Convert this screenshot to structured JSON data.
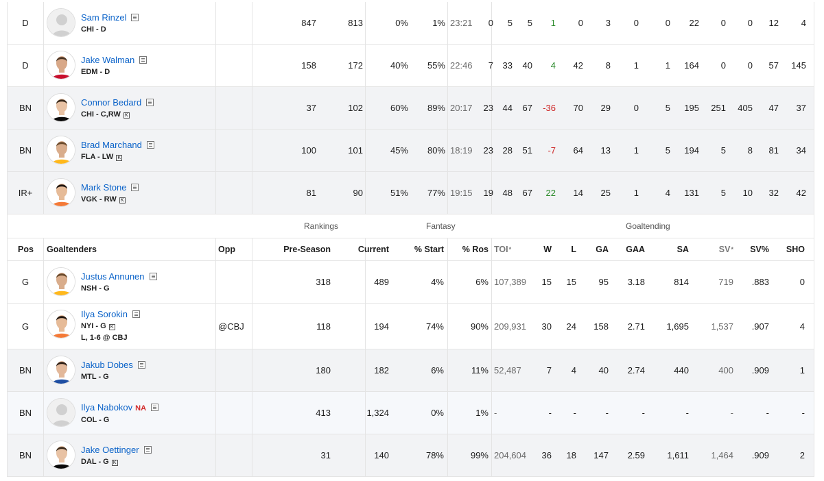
{
  "skaters": [
    {
      "pos": "D",
      "name": "Sam Rinzel",
      "meta": "CHI - D",
      "k": false,
      "avatar": "placeholder",
      "preseason": "847",
      "current": "813",
      "start": "0%",
      "ros": "1%",
      "toi": "23:21",
      "g": "0",
      "a": "5",
      "p": "5",
      "pm": "1",
      "pm_color": "green",
      "pim": "0",
      "ppp": "3",
      "shp": "0",
      "gwg": "0",
      "sog": "22",
      "fw": "0",
      "fl": "0",
      "hit": "12",
      "blk": "4",
      "bg": "white"
    },
    {
      "pos": "D",
      "name": "Jake Walman",
      "meta": "EDM - D",
      "k": false,
      "avatar": "photo",
      "preseason": "158",
      "current": "172",
      "start": "40%",
      "ros": "55%",
      "toi": "22:46",
      "g": "7",
      "a": "33",
      "p": "40",
      "pm": "4",
      "pm_color": "green",
      "pim": "42",
      "ppp": "8",
      "shp": "1",
      "gwg": "1",
      "sog": "164",
      "fw": "0",
      "fl": "0",
      "hit": "57",
      "blk": "145",
      "bg": "white"
    },
    {
      "pos": "BN",
      "name": "Connor Bedard",
      "meta": "CHI - C,RW",
      "k": true,
      "avatar": "photo",
      "preseason": "37",
      "current": "102",
      "start": "60%",
      "ros": "89%",
      "toi": "20:17",
      "g": "23",
      "a": "44",
      "p": "67",
      "pm": "-36",
      "pm_color": "red",
      "pim": "70",
      "ppp": "29",
      "shp": "0",
      "gwg": "5",
      "sog": "195",
      "fw": "251",
      "fl": "405",
      "hit": "47",
      "blk": "37",
      "bg": "bn"
    },
    {
      "pos": "BN",
      "name": "Brad Marchand",
      "meta": "FLA - LW",
      "k": true,
      "avatar": "photo",
      "preseason": "100",
      "current": "101",
      "start": "45%",
      "ros": "80%",
      "toi": "18:19",
      "g": "23",
      "a": "28",
      "p": "51",
      "pm": "-7",
      "pm_color": "red",
      "pim": "64",
      "ppp": "13",
      "shp": "1",
      "gwg": "5",
      "sog": "194",
      "fw": "5",
      "fl": "8",
      "hit": "81",
      "blk": "34",
      "bg": "bn"
    },
    {
      "pos": "IR+",
      "name": "Mark Stone",
      "meta": "VGK - RW",
      "k": true,
      "avatar": "photo",
      "preseason": "81",
      "current": "90",
      "start": "51%",
      "ros": "77%",
      "toi": "19:15",
      "g": "19",
      "a": "48",
      "p": "67",
      "pm": "22",
      "pm_color": "green",
      "pim": "14",
      "ppp": "25",
      "shp": "1",
      "gwg": "4",
      "sog": "131",
      "fw": "5",
      "fl": "10",
      "hit": "32",
      "blk": "42",
      "bg": "bn"
    }
  ],
  "groups": {
    "rankings": "Rankings",
    "fantasy": "Fantasy",
    "goaltending": "Goaltending"
  },
  "goalie_headers": {
    "pos": "Pos",
    "player": "Goaltenders",
    "opp": "Opp",
    "preseason": "Pre-Season",
    "current": "Current",
    "start": "% Start",
    "ros": "% Ros",
    "toi": "TOI",
    "w": "W",
    "l": "L",
    "ga": "GA",
    "gaa": "GAA",
    "sa": "SA",
    "sv": "SV",
    "svpct": "SV%",
    "sho": "SHO",
    "asterisk": "*"
  },
  "goalies": [
    {
      "pos": "G",
      "name": "Justus Annunen",
      "meta": "NSH - G",
      "k": false,
      "game": "",
      "opp": "",
      "avatar": "photo",
      "preseason": "318",
      "current": "489",
      "start": "4%",
      "ros": "6%",
      "toi": "107,389",
      "w": "15",
      "l": "15",
      "ga": "95",
      "gaa": "3.18",
      "sa": "814",
      "sv": "719",
      "svpct": ".883",
      "sho": "0",
      "bg": "white",
      "na": ""
    },
    {
      "pos": "G",
      "name": "Ilya Sorokin",
      "meta": "NYI - G",
      "k": true,
      "game": "L, 1-6 @ CBJ",
      "opp": "@CBJ",
      "avatar": "photo",
      "preseason": "118",
      "current": "194",
      "start": "74%",
      "ros": "90%",
      "toi": "209,931",
      "w": "30",
      "l": "24",
      "ga": "158",
      "gaa": "2.71",
      "sa": "1,695",
      "sv": "1,537",
      "svpct": ".907",
      "sho": "4",
      "bg": "white",
      "na": ""
    },
    {
      "pos": "BN",
      "name": "Jakub Dobes",
      "meta": "MTL - G",
      "k": false,
      "game": "",
      "opp": "",
      "avatar": "photo",
      "preseason": "180",
      "current": "182",
      "start": "6%",
      "ros": "11%",
      "toi": "52,487",
      "w": "7",
      "l": "4",
      "ga": "40",
      "gaa": "2.74",
      "sa": "440",
      "sv": "400",
      "svpct": ".909",
      "sho": "1",
      "bg": "bn",
      "na": ""
    },
    {
      "pos": "BN",
      "name": "Ilya Nabokov",
      "meta": "COL - G",
      "k": false,
      "game": "",
      "opp": "",
      "avatar": "placeholder",
      "preseason": "413",
      "current": "1,324",
      "start": "0%",
      "ros": "1%",
      "toi": "-",
      "w": "-",
      "l": "-",
      "ga": "-",
      "gaa": "-",
      "sa": "-",
      "sv": "-",
      "svpct": "-",
      "sho": "-",
      "bg": "alt",
      "na": "NA"
    },
    {
      "pos": "BN",
      "name": "Jake Oettinger",
      "meta": "DAL - G",
      "k": true,
      "game": "",
      "opp": "",
      "avatar": "photo",
      "preseason": "31",
      "current": "140",
      "start": "78%",
      "ros": "99%",
      "toi": "204,604",
      "w": "36",
      "l": "18",
      "ga": "147",
      "gaa": "2.59",
      "sa": "1,611",
      "sv": "1,464",
      "svpct": ".909",
      "sho": "2",
      "bg": "bn",
      "na": ""
    }
  ]
}
